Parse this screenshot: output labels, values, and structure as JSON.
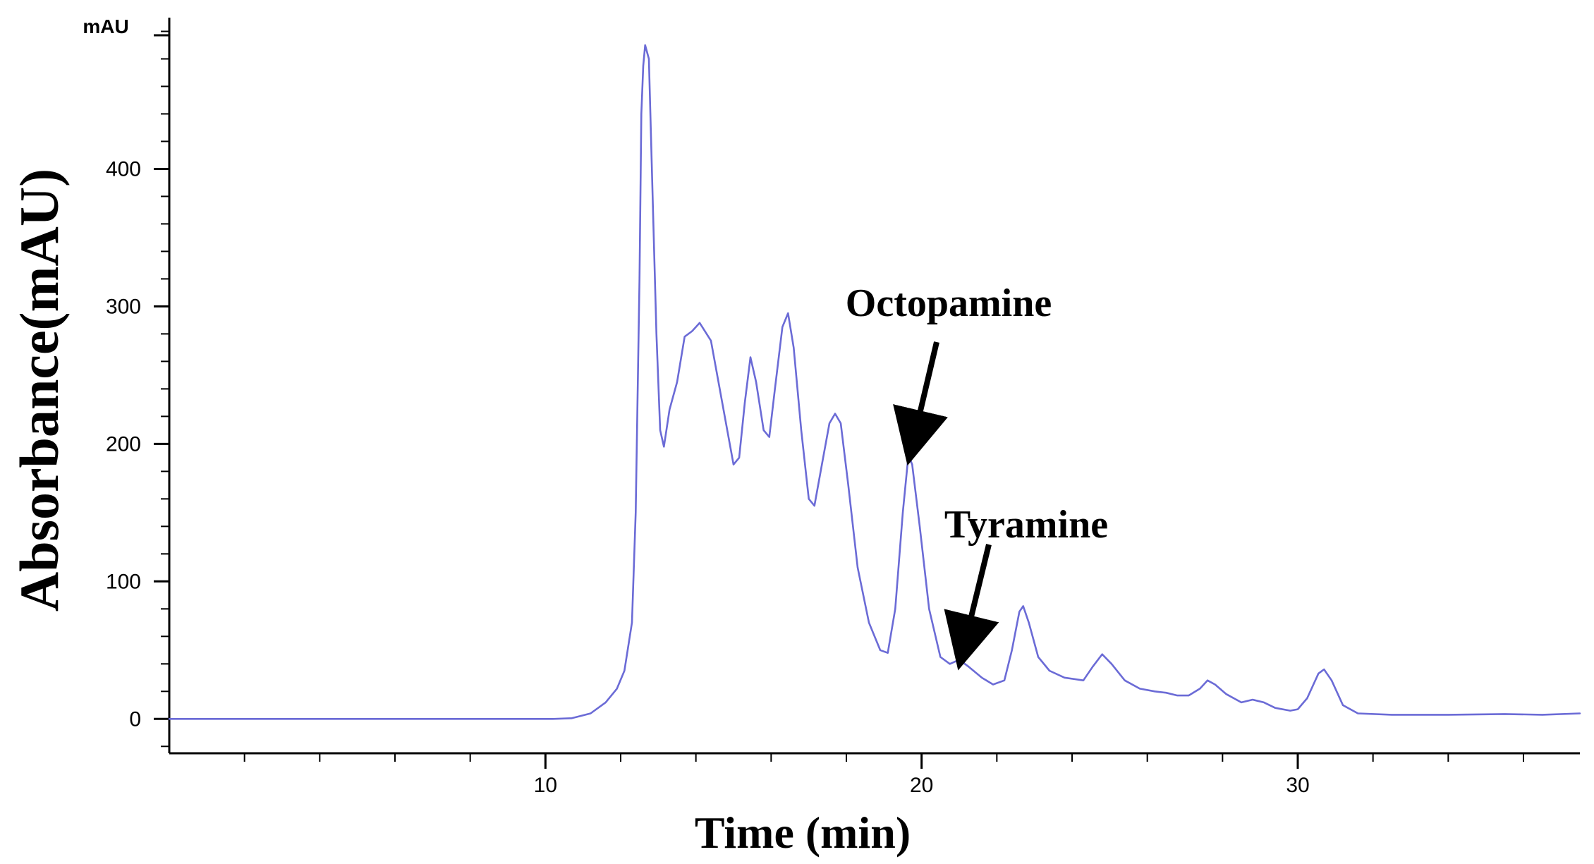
{
  "chart_data": {
    "type": "line",
    "xlabel": "Time (min)",
    "ylabel": "Absorbance(mAU)",
    "y_unit": "mAU",
    "xlim": [
      0,
      37.5
    ],
    "ylim": [
      -25,
      510
    ],
    "x_ticks": [
      10,
      20,
      30
    ],
    "x_minor_step": 2,
    "y_ticks": [
      0,
      100,
      200,
      300,
      400
    ],
    "y_minor_step": 20,
    "grid": false,
    "line_color": "#6b6bd6",
    "series": [
      {
        "values": [
          [
            0,
            0
          ],
          [
            10.2,
            0
          ],
          [
            10.7,
            0.5
          ],
          [
            11.2,
            4
          ],
          [
            11.6,
            12
          ],
          [
            11.9,
            22
          ],
          [
            12.1,
            35
          ],
          [
            12.3,
            70
          ],
          [
            12.4,
            150
          ],
          [
            12.5,
            320
          ],
          [
            12.55,
            440
          ],
          [
            12.6,
            475
          ],
          [
            12.65,
            490
          ],
          [
            12.75,
            480
          ],
          [
            12.85,
            380
          ],
          [
            12.95,
            280
          ],
          [
            13.05,
            210
          ],
          [
            13.15,
            198
          ],
          [
            13.3,
            225
          ],
          [
            13.5,
            245
          ],
          [
            13.7,
            278
          ],
          [
            13.9,
            282
          ],
          [
            14.1,
            288
          ],
          [
            14.4,
            275
          ],
          [
            14.7,
            230
          ],
          [
            15.0,
            185
          ],
          [
            15.15,
            190
          ],
          [
            15.3,
            230
          ],
          [
            15.45,
            263
          ],
          [
            15.6,
            245
          ],
          [
            15.8,
            210
          ],
          [
            15.95,
            205
          ],
          [
            16.1,
            240
          ],
          [
            16.3,
            285
          ],
          [
            16.45,
            295
          ],
          [
            16.6,
            270
          ],
          [
            16.8,
            210
          ],
          [
            17.0,
            160
          ],
          [
            17.15,
            155
          ],
          [
            17.35,
            185
          ],
          [
            17.55,
            215
          ],
          [
            17.7,
            222
          ],
          [
            17.85,
            215
          ],
          [
            18.05,
            170
          ],
          [
            18.3,
            110
          ],
          [
            18.6,
            70
          ],
          [
            18.9,
            50
          ],
          [
            19.1,
            48
          ],
          [
            19.3,
            80
          ],
          [
            19.5,
            150
          ],
          [
            19.65,
            192
          ],
          [
            19.75,
            185
          ],
          [
            19.95,
            140
          ],
          [
            20.2,
            80
          ],
          [
            20.5,
            45
          ],
          [
            20.75,
            40
          ],
          [
            21.0,
            43
          ],
          [
            21.25,
            38
          ],
          [
            21.6,
            30
          ],
          [
            21.9,
            25
          ],
          [
            22.2,
            28
          ],
          [
            22.4,
            50
          ],
          [
            22.6,
            78
          ],
          [
            22.7,
            82
          ],
          [
            22.85,
            70
          ],
          [
            23.1,
            45
          ],
          [
            23.4,
            35
          ],
          [
            23.8,
            30
          ],
          [
            24.3,
            28
          ],
          [
            24.55,
            38
          ],
          [
            24.8,
            47
          ],
          [
            25.05,
            40
          ],
          [
            25.4,
            28
          ],
          [
            25.8,
            22
          ],
          [
            26.2,
            20
          ],
          [
            26.5,
            19
          ],
          [
            26.8,
            17
          ],
          [
            27.1,
            17
          ],
          [
            27.4,
            22
          ],
          [
            27.6,
            28
          ],
          [
            27.8,
            25
          ],
          [
            28.1,
            18
          ],
          [
            28.5,
            12
          ],
          [
            28.8,
            14
          ],
          [
            29.1,
            12
          ],
          [
            29.4,
            8
          ],
          [
            29.8,
            6
          ],
          [
            30.0,
            7
          ],
          [
            30.25,
            15
          ],
          [
            30.55,
            33
          ],
          [
            30.7,
            36
          ],
          [
            30.9,
            28
          ],
          [
            31.2,
            10
          ],
          [
            31.6,
            4
          ],
          [
            32.5,
            3
          ],
          [
            34.0,
            3
          ],
          [
            35.5,
            3.5
          ],
          [
            36.5,
            3
          ],
          [
            37.5,
            4
          ]
        ]
      }
    ],
    "annotations": [
      {
        "text": "Octopamine",
        "point": [
          19.65,
          192
        ]
      },
      {
        "text": "Tyramine",
        "point": [
          21.0,
          43
        ]
      }
    ]
  }
}
